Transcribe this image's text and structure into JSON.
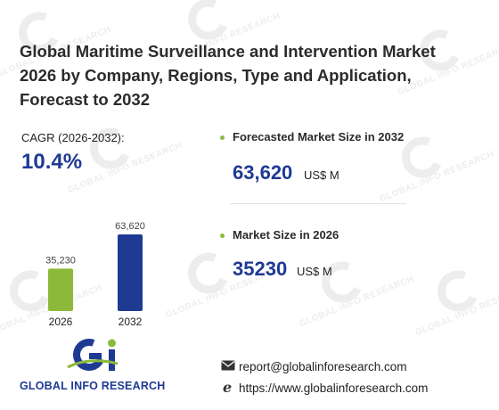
{
  "header": {
    "title": "Global Maritime Surveillance and Intervention Market 2026 by Company, Regions, Type and Application, Forecast to 2032"
  },
  "cagr": {
    "label": "CAGR (2026-2032):",
    "value": "10.4%"
  },
  "stats": [
    {
      "label": "Forecasted Market Size in 2032",
      "value": "63,620",
      "unit": "US$ M"
    },
    {
      "label": "Market Size in 2026",
      "value": "35230",
      "unit": "US$ M"
    }
  ],
  "chart_data": {
    "type": "bar",
    "categories": [
      "2026",
      "2032"
    ],
    "values": [
      35230,
      63620
    ],
    "value_labels": [
      "35,230",
      "63,620"
    ],
    "colors": [
      "#8db93a",
      "#1f3a93"
    ],
    "ylim": [
      0,
      63620
    ],
    "grid": false
  },
  "contacts": {
    "email": "report@globalinforesearch.com",
    "website": "https://www.globalinforesearch.com"
  },
  "brand": {
    "name": "GLOBAL INFO RESEARCH",
    "watermark_text": "GLOBAL INFO RESEARCH",
    "primary_color": "#1f3a93",
    "accent_color": "#8db93a"
  },
  "icons": {
    "email": "envelope-icon",
    "website": "globe-e-icon",
    "logo": "gi-logo-icon"
  }
}
